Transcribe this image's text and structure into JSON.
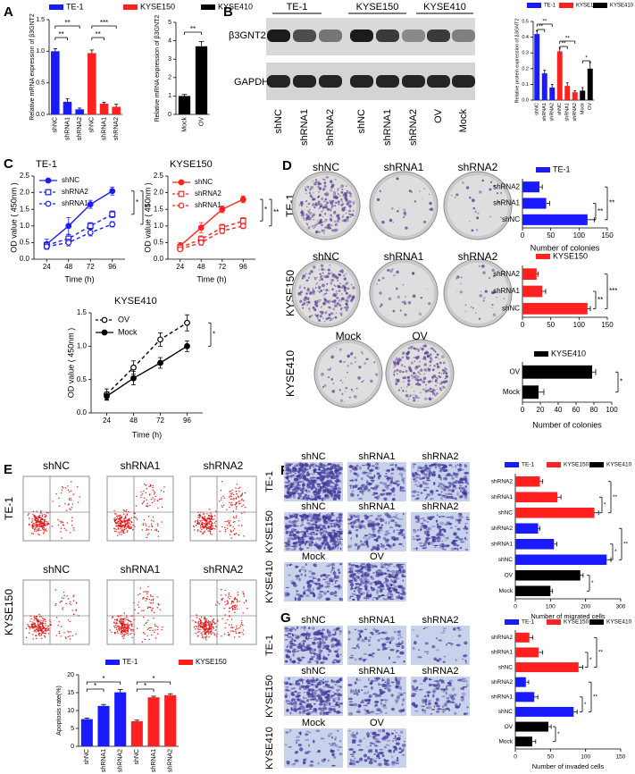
{
  "figure": {
    "panel_labels": [
      "A",
      "B",
      "C",
      "D",
      "E",
      "F",
      "G"
    ],
    "blot": {
      "groups": [
        "TE-1",
        "KYSE150",
        "KYSE410"
      ],
      "rows": [
        "β3GNT2",
        "GAPDH"
      ],
      "lanes": [
        "shNC",
        "shRNA1",
        "shRNA2",
        "shNC",
        "shRNA1",
        "shRNA2",
        "OV",
        "Mock"
      ]
    },
    "colony": {
      "rows": [
        "TE-1",
        "KYSE150",
        "KYSE410"
      ],
      "columns": [
        [
          "shNC",
          "shRNA1",
          "shRNA2"
        ],
        [
          "shNC",
          "shRNA1",
          "shRNA2"
        ],
        [
          "Mock",
          "OV"
        ]
      ]
    },
    "flow": {
      "rows": [
        "TE-1",
        "KYSE150"
      ],
      "columns": [
        [
          "shNC",
          "shRNA1",
          "shRNA2"
        ],
        [
          "shNC",
          "shRNA1",
          "shRNA2"
        ]
      ]
    },
    "migration": {
      "rows": [
        "TE-1",
        "KYSE150",
        "KYSE410"
      ],
      "columns": [
        [
          "shNC",
          "shRNA1",
          "shRNA2"
        ],
        [
          "shNC",
          "shRNA1",
          "shRNA2"
        ],
        [
          "Mock",
          "OV"
        ]
      ]
    },
    "invasion": {
      "rows": [
        "TE-1",
        "KYSE150",
        "KYSE410"
      ],
      "columns": [
        [
          "shNC",
          "shRNA1",
          "shRNA2"
        ],
        [
          "shNC",
          "shRNA1",
          "shRNA2"
        ],
        [
          "Mock",
          "OV"
        ]
      ]
    }
  },
  "chart_data": [
    {
      "type": "bar",
      "categories": [
        "shNC",
        "shRNA1",
        "shRNA2",
        "shNC",
        "shRNA1",
        "shRNA2"
      ],
      "series": [
        {
          "name": "TE-1",
          "color": "#1a1aff",
          "values": [
            1.0,
            0.2,
            0.08,
            null,
            null,
            null
          ],
          "errors": [
            0.04,
            0.05,
            0.02,
            null,
            null,
            null
          ]
        },
        {
          "name": "KYSE150",
          "color": "#ff2020",
          "values": [
            null,
            null,
            null,
            0.97,
            0.17,
            0.12
          ],
          "errors": [
            null,
            null,
            null,
            0.05,
            0.02,
            0.04
          ]
        }
      ],
      "y_label": "Relative mRNA expression of β3GNT2",
      "ylim": [
        0,
        1.5
      ],
      "yticks": [
        {
          "value": 0,
          "label": "0.0"
        },
        0.5,
        {
          "value": 1,
          "label": "1.0"
        },
        1.5
      ],
      "annotations": [
        "**",
        "**",
        "**",
        "***"
      ]
    },
    {
      "type": "bar",
      "categories": [
        "Mock",
        "OV"
      ],
      "series": [
        {
          "name": "KYSE410",
          "color": "#000000",
          "values": [
            1.0,
            3.7
          ],
          "errors": [
            0.08,
            0.25
          ]
        }
      ],
      "y_label": "Relative mRNA expression of β3GNT2",
      "ylim": [
        0,
        5
      ],
      "yticks": [
        0,
        1,
        2,
        3,
        4,
        5
      ],
      "annotations": [
        "**"
      ]
    },
    {
      "type": "bar",
      "categories": [
        "shNC",
        "shRNA1",
        "shRNA2",
        "shNC",
        "shRNA1",
        "shRNA2",
        "Mock",
        "OV"
      ],
      "series": [
        {
          "name": "TE-1",
          "color": "#1a1aff",
          "values": [
            0.42,
            0.17,
            0.08,
            null,
            null,
            null,
            null,
            null
          ],
          "errors": [
            0.02,
            0.02,
            0.02,
            null,
            null,
            null,
            null,
            null
          ]
        },
        {
          "name": "KYSE150",
          "color": "#ff2020",
          "values": [
            null,
            null,
            null,
            0.31,
            0.09,
            0.05,
            null,
            null
          ],
          "errors": [
            null,
            null,
            null,
            0.02,
            0.02,
            0.01,
            null,
            null
          ]
        },
        {
          "name": "KYSE410",
          "color": "#000000",
          "values": [
            null,
            null,
            null,
            null,
            null,
            null,
            0.06,
            0.2
          ],
          "errors": [
            null,
            null,
            null,
            null,
            null,
            null,
            0.02,
            0.04
          ]
        }
      ],
      "y_label": "Relative protein expression of β3GNT2",
      "ylim": [
        0,
        0.5
      ],
      "yticks": [
        {
          "value": 0,
          "label": "0.0"
        },
        0.1,
        0.2,
        0.3,
        0.4,
        0.5
      ],
      "annotations": [
        "**",
        "**",
        "**",
        "**",
        "*"
      ]
    },
    {
      "type": "line",
      "title": "TE-1",
      "x": [
        24,
        48,
        72,
        96
      ],
      "xlim": [
        10,
        110
      ],
      "xticks": [
        24,
        48,
        72,
        96
      ],
      "series": [
        {
          "name": "shNC",
          "color": "#1a1aff",
          "marker": "circle",
          "line_style": "solid",
          "values": [
            0.45,
            1.0,
            1.65,
            2.05
          ],
          "errors": [
            0.15,
            0.25,
            0.12,
            0.12
          ]
        },
        {
          "name": "shRNA2",
          "color": "#1a1aff",
          "marker": "square-open",
          "line_style": "dashed",
          "values": [
            0.42,
            0.62,
            1.0,
            1.35
          ],
          "errors": [
            0.1,
            0.12,
            0.1,
            0.1
          ]
        },
        {
          "name": "shRNA1",
          "color": "#1a1aff",
          "marker": "circle-open",
          "line_style": "dashed",
          "values": [
            0.38,
            0.5,
            0.8,
            1.05
          ],
          "errors": [
            0.08,
            0.1,
            0.1,
            0.08
          ]
        }
      ],
      "x_label": "Time (h)",
      "y_label": "OD value ( 450nm )",
      "ylim": [
        0,
        2.5
      ],
      "yticks": [
        {
          "value": 0,
          "label": "0.0"
        },
        0.5,
        {
          "value": 1,
          "label": "1.0"
        },
        1.5,
        {
          "value": 2,
          "label": "2.0"
        },
        2.5
      ],
      "annotations": [
        "*",
        "**"
      ]
    },
    {
      "type": "line",
      "title": "KYSE150",
      "x": [
        24,
        48,
        72,
        96
      ],
      "xlim": [
        10,
        110
      ],
      "xticks": [
        24,
        48,
        72,
        96
      ],
      "series": [
        {
          "name": "shNC",
          "color": "#ff2020",
          "marker": "circle",
          "line_style": "solid",
          "values": [
            0.4,
            0.95,
            1.5,
            1.8
          ],
          "errors": [
            0.1,
            0.15,
            0.1,
            0.1
          ]
        },
        {
          "name": "shRNA2",
          "color": "#ff2020",
          "marker": "square-open",
          "line_style": "dashed",
          "values": [
            0.35,
            0.6,
            0.95,
            1.15
          ],
          "errors": [
            0.08,
            0.1,
            0.1,
            0.1
          ]
        },
        {
          "name": "shRNA1",
          "color": "#ff2020",
          "marker": "circle-open",
          "line_style": "dashed",
          "values": [
            0.3,
            0.5,
            0.85,
            1.0
          ],
          "errors": [
            0.06,
            0.08,
            0.08,
            0.08
          ]
        }
      ],
      "x_label": "Time (h)",
      "y_label": "OD value ( 450nm )",
      "ylim": [
        0,
        2.5
      ],
      "yticks": [
        {
          "value": 0,
          "label": "0.0"
        },
        0.5,
        {
          "value": 1,
          "label": "1.0"
        },
        1.5,
        {
          "value": 2,
          "label": "2.0"
        },
        2.5
      ],
      "annotations": [
        "*",
        "**"
      ]
    },
    {
      "type": "line",
      "title": "KYSE410",
      "x": [
        24,
        48,
        72,
        96
      ],
      "xlim": [
        10,
        110
      ],
      "xticks": [
        24,
        48,
        72,
        96
      ],
      "series": [
        {
          "name": "OV",
          "color": "#000000",
          "marker": "circle-open",
          "line_style": "dashed",
          "values": [
            0.28,
            0.68,
            1.1,
            1.35
          ],
          "errors": [
            0.08,
            0.1,
            0.1,
            0.12
          ]
        },
        {
          "name": "Mock",
          "color": "#000000",
          "marker": "circle",
          "line_style": "solid",
          "values": [
            0.25,
            0.52,
            0.75,
            1.0
          ],
          "errors": [
            0.06,
            0.1,
            0.08,
            0.08
          ]
        }
      ],
      "x_label": "Time (h)",
      "y_label": "OD value ( 450nm )",
      "ylim": [
        0,
        1.5
      ],
      "yticks": [
        {
          "value": 0,
          "label": "0.0"
        },
        0.5,
        {
          "value": 1,
          "label": "1.0"
        },
        1.5
      ],
      "annotations": [
        "*"
      ]
    },
    {
      "type": "barh",
      "categories": [
        "shRNA2",
        "shRNA1",
        "shNC"
      ],
      "series": [
        {
          "name": "TE-1",
          "color": "#1a1aff",
          "values": [
            30,
            42,
            115
          ],
          "errors": [
            5,
            6,
            12
          ]
        }
      ],
      "x_label": "Number of colonies",
      "xlim": [
        0,
        150
      ],
      "xticks": [
        0,
        50,
        100,
        150
      ],
      "annotations": [
        "**",
        "**"
      ]
    },
    {
      "type": "barh",
      "categories": [
        "shRNA2",
        "shRNA1",
        "shNC"
      ],
      "series": [
        {
          "name": "KYSE150",
          "color": "#ff2020",
          "values": [
            25,
            35,
            115
          ],
          "errors": [
            3,
            6,
            5
          ]
        }
      ],
      "xlim": [
        0,
        150
      ],
      "xticks": [
        0,
        50,
        100,
        150
      ],
      "annotations": [
        "**",
        "***"
      ]
    },
    {
      "type": "barh",
      "categories": [
        "OV",
        "Mock"
      ],
      "series": [
        {
          "name": "KYSE410",
          "color": "#000000",
          "values": [
            78,
            18
          ],
          "errors": [
            4,
            6
          ]
        }
      ],
      "x_label": "Number of colonies",
      "xlim": [
        0,
        100
      ],
      "xticks": [
        0,
        20,
        40,
        60,
        80,
        100
      ],
      "annotations": [
        "*"
      ]
    },
    {
      "type": "bar",
      "categories": [
        "shNC",
        "shRNA1",
        "shRNA2",
        "shNC",
        "shRNA1",
        "shRNA2"
      ],
      "series": [
        {
          "name": "TE-1",
          "color": "#1a1aff",
          "values": [
            7.6,
            11.3,
            15.1,
            null,
            null,
            null
          ],
          "errors": [
            0.3,
            0.4,
            0.8,
            null,
            null,
            null
          ]
        },
        {
          "name": "KYSE150",
          "color": "#ff2020",
          "values": [
            null,
            null,
            null,
            7.0,
            13.7,
            14.3
          ],
          "errors": [
            null,
            null,
            null,
            0.3,
            0.3,
            0.4
          ]
        }
      ],
      "y_label": "Apoptosis rate(%)",
      "ylim": [
        0,
        20
      ],
      "yticks": [
        0,
        5,
        10,
        15,
        20
      ],
      "annotations": [
        "*",
        "*",
        "*",
        "*"
      ]
    },
    {
      "type": "barh",
      "categories": [
        "shRNA2",
        "shRNA1",
        "shNC",
        "shRNA2",
        "shRNA1",
        "shNC",
        "OV",
        "Mock"
      ],
      "series": [
        {
          "name": "TE-1",
          "color": "#1a1aff",
          "values": [
            null,
            null,
            null,
            65,
            110,
            260,
            null,
            null
          ],
          "errors": [
            null,
            null,
            null,
            5,
            8,
            12,
            null,
            null
          ]
        },
        {
          "name": "KYSE150",
          "color": "#ff2020",
          "values": [
            70,
            120,
            225,
            null,
            null,
            null,
            null,
            null
          ],
          "errors": [
            8,
            10,
            12,
            null,
            null,
            null,
            null,
            null
          ]
        },
        {
          "name": "KYSE410",
          "color": "#000000",
          "values": [
            null,
            null,
            null,
            null,
            null,
            null,
            185,
            100
          ],
          "errors": [
            null,
            null,
            null,
            null,
            null,
            null,
            8,
            6
          ]
        }
      ],
      "x_label": "Number of migrated cells",
      "xlim": [
        0,
        300
      ],
      "xticks": [
        0,
        100,
        200,
        300
      ],
      "annotations": [
        "*",
        "**",
        "*",
        "**",
        "*"
      ]
    },
    {
      "type": "barh",
      "categories": [
        "shRNA2",
        "shRNA1",
        "shNC",
        "shRNA2",
        "shRNA1",
        "shNC",
        "OV",
        "Mock"
      ],
      "series": [
        {
          "name": "TE-1",
          "color": "#1a1aff",
          "values": [
            null,
            null,
            null,
            15,
            27,
            83,
            null,
            null
          ],
          "errors": [
            null,
            null,
            null,
            4,
            5,
            5,
            null,
            null
          ]
        },
        {
          "name": "KYSE150",
          "color": "#ff2020",
          "values": [
            20,
            33,
            90,
            null,
            null,
            null,
            null,
            null
          ],
          "errors": [
            5,
            6,
            6,
            null,
            null,
            null,
            null,
            null
          ]
        },
        {
          "name": "KYSE410",
          "color": "#000000",
          "values": [
            null,
            null,
            null,
            null,
            null,
            null,
            47,
            24
          ],
          "errors": [
            null,
            null,
            null,
            null,
            null,
            null,
            4,
            5
          ]
        }
      ],
      "x_label": "Number of invaded cells",
      "xlim": [
        0,
        150
      ],
      "xticks": [
        0,
        50,
        100,
        150
      ],
      "annotations": [
        "*",
        "**",
        "*",
        "**",
        "*"
      ]
    }
  ]
}
